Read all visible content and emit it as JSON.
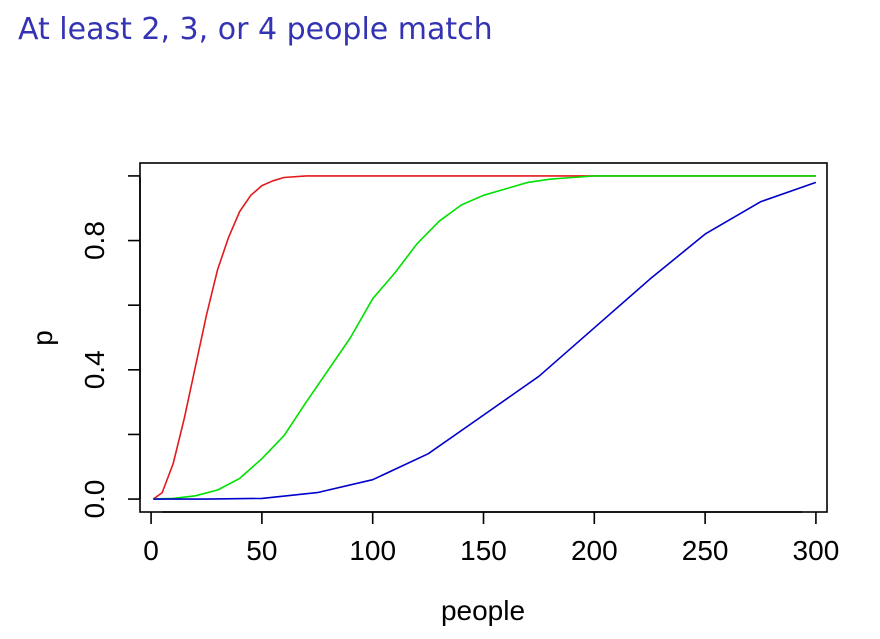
{
  "slide": {
    "title": "At least 2, 3, or 4 people match"
  },
  "chart_data": {
    "type": "line",
    "title": "",
    "xlabel": "people",
    "ylabel": "p",
    "xlim": [
      -5,
      305
    ],
    "ylim": [
      -0.04,
      1.04
    ],
    "x_ticks": [
      0,
      50,
      100,
      150,
      200,
      250,
      300
    ],
    "x_tick_labels": [
      "0",
      "50",
      "100",
      "150",
      "200",
      "250",
      "300"
    ],
    "y_ticks": [
      0,
      0.2,
      0.4,
      0.6,
      0.8,
      1.0
    ],
    "y_tick_labels": [
      "0.0",
      "",
      "0.4",
      "",
      "0.8",
      ""
    ],
    "grid": false,
    "legend": "none",
    "series": [
      {
        "color": "#e31a1c",
        "x": [
          1,
          5,
          10,
          15,
          20,
          25,
          30,
          35,
          40,
          45,
          50,
          55,
          60,
          70,
          80,
          100,
          150,
          200,
          250,
          300
        ],
        "y": [
          0,
          0.02,
          0.11,
          0.25,
          0.41,
          0.57,
          0.71,
          0.81,
          0.89,
          0.94,
          0.97,
          0.985,
          0.995,
          1.0,
          1.0,
          1.0,
          1.0,
          1.0,
          1.0,
          1.0
        ]
      },
      {
        "color": "#00e000",
        "x": [
          1,
          10,
          20,
          30,
          40,
          50,
          60,
          70,
          80,
          90,
          100,
          110,
          120,
          130,
          140,
          150,
          160,
          170,
          180,
          190,
          200,
          250,
          300
        ],
        "y": [
          0,
          0.002,
          0.01,
          0.028,
          0.064,
          0.125,
          0.196,
          0.3,
          0.4,
          0.5,
          0.62,
          0.7,
          0.79,
          0.86,
          0.91,
          0.94,
          0.96,
          0.98,
          0.99,
          0.995,
          1.0,
          1.0,
          1.0
        ]
      },
      {
        "color": "#0000cc",
        "x": [
          1,
          25,
          50,
          75,
          100,
          125,
          150,
          175,
          200,
          225,
          250,
          275,
          300
        ],
        "y": [
          0,
          0,
          0.002,
          0.02,
          0.06,
          0.14,
          0.26,
          0.38,
          0.53,
          0.68,
          0.82,
          0.92,
          0.98
        ]
      }
    ]
  }
}
